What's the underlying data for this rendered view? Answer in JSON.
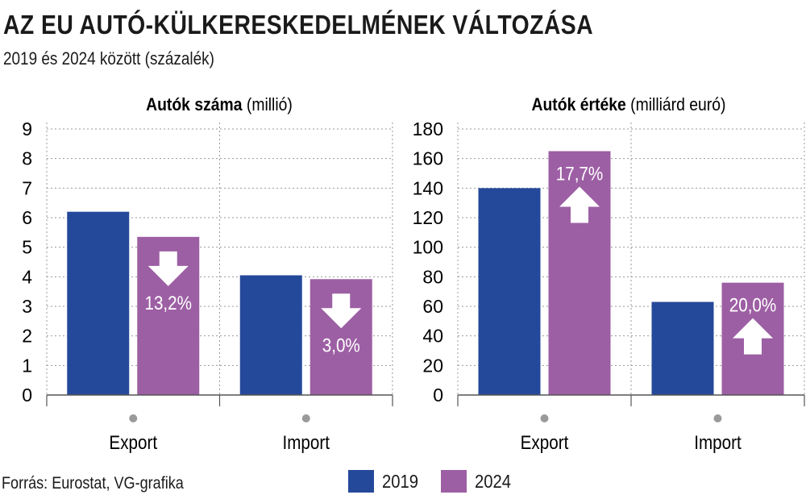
{
  "title": "AZ EU AUTÓ-KÜLKERESKEDELMÉNEK VÁLTOZÁSA",
  "subtitle": "2019 és 2024 között (százalék)",
  "source": "Forrás: Eurostat, VG-grafika",
  "colors": {
    "2019": "#25499a",
    "2024": "#9d5fa4",
    "grid": "#999999",
    "axis": "#555555",
    "dot": "#9a9a9a"
  },
  "legend": [
    {
      "label": "2019",
      "color": "#25499a"
    },
    {
      "label": "2024",
      "color": "#9d5fa4"
    }
  ],
  "chart_data": [
    {
      "type": "bar",
      "title_bold": "Autók száma",
      "title_unit": "(millió)",
      "categories": [
        "Export",
        "Import"
      ],
      "series": [
        {
          "name": "2019",
          "values": [
            6.2,
            4.05
          ]
        },
        {
          "name": "2024",
          "values": [
            5.35,
            3.92
          ]
        }
      ],
      "ylim": [
        0,
        9
      ],
      "yticks": [
        "0",
        "1",
        "2",
        "3",
        "4",
        "5",
        "6",
        "7",
        "8",
        "9"
      ],
      "changes": [
        {
          "category": "Export",
          "label": "13,2%",
          "direction": "down"
        },
        {
          "category": "Import",
          "label": "3,0%",
          "direction": "down"
        }
      ],
      "grid": true
    },
    {
      "type": "bar",
      "title_bold": "Autók értéke",
      "title_unit": "(milliárd euró)",
      "categories": [
        "Export",
        "Import"
      ],
      "series": [
        {
          "name": "2019",
          "values": [
            140,
            63
          ]
        },
        {
          "name": "2024",
          "values": [
            165,
            76
          ]
        }
      ],
      "ylim": [
        0,
        180
      ],
      "yticks": [
        "0",
        "20",
        "40",
        "60",
        "80",
        "100",
        "120",
        "140",
        "160",
        "180"
      ],
      "changes": [
        {
          "category": "Export",
          "label": "17,7%",
          "direction": "up"
        },
        {
          "category": "Import",
          "label": "20,0%",
          "direction": "up"
        }
      ],
      "grid": true
    }
  ]
}
